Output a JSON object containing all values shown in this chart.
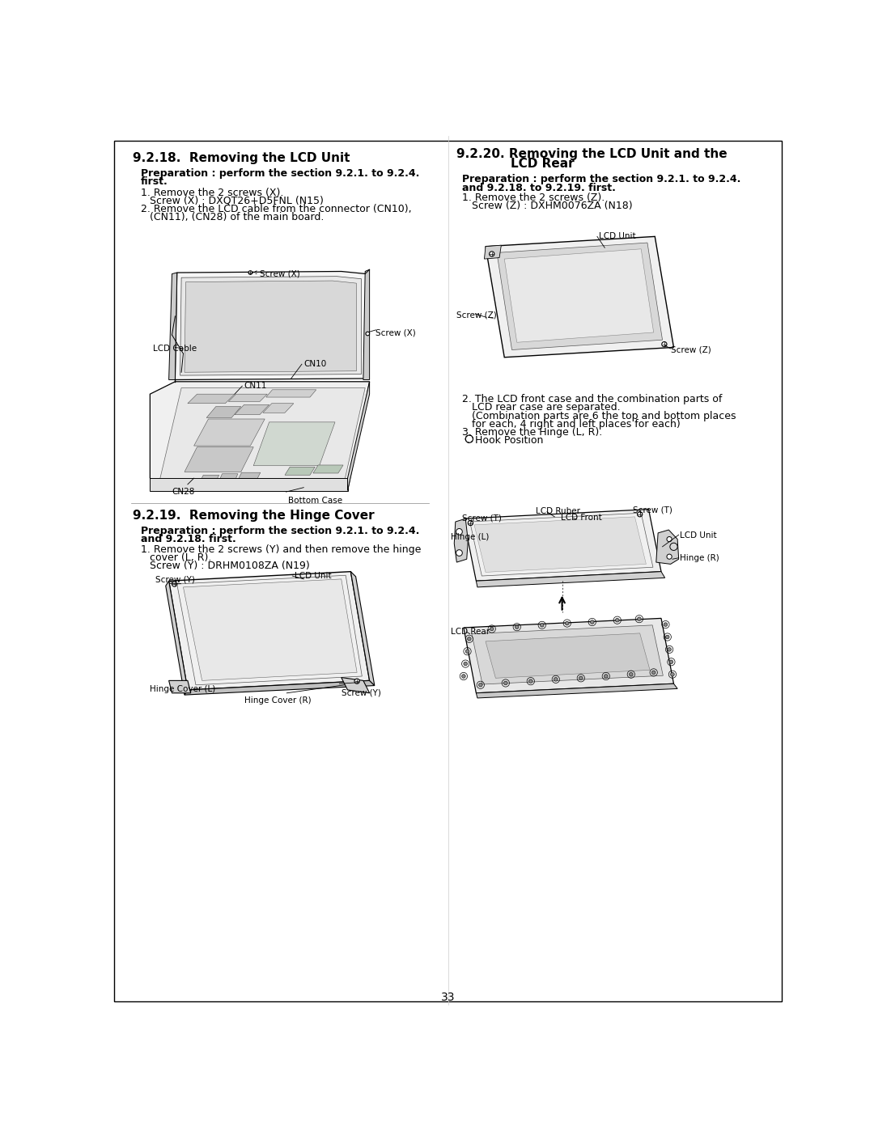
{
  "page_number": "33",
  "bg": "#ffffff",
  "tc": "#000000",
  "sections": {
    "918_title": "9.2.18.  Removing the LCD Unit",
    "918_prep1": "Preparation : perform the section 9.2.1. to 9.2.4.",
    "918_prep2": "first.",
    "918_s1a": "1. Remove the 2 screws (X).",
    "918_s1b": "   Screw (X) : DXQT26+D5FNL (N15)",
    "918_s2a": "2. Remove the LCD cable from the connector (CN10),",
    "918_s2b": "   (CN11), (CN28) of the main board.",
    "919_title": "9.2.19.  Removing the Hinge Cover",
    "919_prep1": "Preparation : perform the section 9.2.1. to 9.2.4.",
    "919_prep2": "and 9.2.18. first.",
    "919_s1a": "1. Remove the 2 screws (Y) and then remove the hinge",
    "919_s1b": "   cover (L, R).",
    "919_s1c": "   Screw (Y) : DRHM0108ZA (N19)",
    "920_title1": "9.2.20. Removing the LCD Unit and the",
    "920_title2": "LCD Rear",
    "920_prep1": "Preparation : perform the section 9.2.1. to 9.2.4.",
    "920_prep2": "and 9.2.18. to 9.2.19. first.",
    "920_s1a": "1. Remove the 2 screws (Z).",
    "920_s1b": "   Screw (Z) : DXHM0076ZA (N18)",
    "920_s2a": "2. The LCD front case and the combination parts of",
    "920_s2b": "   LCD rear case are separated.",
    "920_s2c": "   (Combination parts are 6 the top and bottom places",
    "920_s2d": "   for each, 4 right and left places for each)",
    "920_s3": "3. Remove the Hinge (L, R).",
    "920_hook": "Hook Position"
  }
}
